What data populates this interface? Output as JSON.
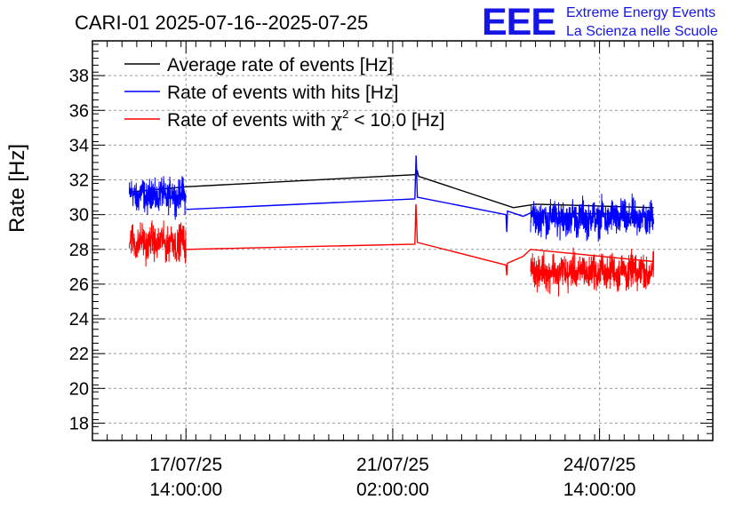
{
  "chart_data": {
    "type": "line",
    "title": "CARI-01 2025-07-16--2025-07-25",
    "ylabel": "Rate [Hz]",
    "xlabel": "",
    "x_unit": "hours since 2025-07-16 00:00",
    "xlim": [
      0,
      252
    ],
    "ylim": [
      17,
      40
    ],
    "yticks": [
      18,
      20,
      22,
      24,
      26,
      28,
      30,
      32,
      34,
      36,
      38
    ],
    "xticks": [
      {
        "x": 38,
        "date": "17/07/25",
        "time": "14:00:00"
      },
      {
        "x": 122,
        "date": "21/07/25",
        "time": "02:00:00"
      },
      {
        "x": 206,
        "date": "24/07/25",
        "time": "14:00:00"
      }
    ],
    "grid": true,
    "legend_position": "top-left",
    "series": [
      {
        "name": "Average rate of events [Hz]",
        "color": "#000000",
        "points": [
          [
            15,
            31.3
          ],
          [
            38,
            31.6
          ],
          [
            131,
            32.3
          ],
          [
            132,
            32.5
          ],
          [
            132.5,
            32.2
          ],
          [
            171,
            30.4
          ],
          [
            180,
            30.6
          ],
          [
            228,
            30.4
          ]
        ],
        "noise_segments": []
      },
      {
        "name": "Rate of events with hits [Hz]",
        "color": "#0000ff",
        "points": [
          [
            38,
            30.3
          ],
          [
            131,
            30.9
          ],
          [
            131.5,
            33.4
          ],
          [
            132,
            31.0
          ],
          [
            168,
            30.0
          ],
          [
            168.3,
            29.0
          ],
          [
            168.6,
            30.2
          ],
          [
            175,
            29.9
          ],
          [
            178,
            30.1
          ],
          [
            228,
            30.0
          ]
        ],
        "noise_segments": [
          {
            "x_start": 15,
            "x_end": 38,
            "center": 31.1,
            "spread": 1.3
          },
          {
            "x_start": 178,
            "x_end": 228,
            "center": 29.8,
            "spread": 1.4
          }
        ]
      },
      {
        "name": "Rate of events with χ² < 10.0 [Hz]",
        "color": "#ff0000",
        "points": [
          [
            38,
            28.0
          ],
          [
            131,
            28.3
          ],
          [
            131.4,
            30.6
          ],
          [
            132,
            28.4
          ],
          [
            168,
            27.1
          ],
          [
            168.3,
            26.5
          ],
          [
            168.6,
            27.2
          ],
          [
            175,
            27.6
          ],
          [
            178,
            28.0
          ],
          [
            228,
            27.3
          ]
        ],
        "noise_segments": [
          {
            "x_start": 15,
            "x_end": 38,
            "center": 28.4,
            "spread": 1.4
          },
          {
            "x_start": 178,
            "x_end": 228,
            "center": 26.7,
            "spread": 1.4
          }
        ]
      }
    ],
    "legend": [
      {
        "label": "Average rate of events [Hz]",
        "color": "#000000"
      },
      {
        "label": "Rate of events with hits [Hz]",
        "color": "#0000ff"
      },
      {
        "label_prefix": "Rate of events with ",
        "label_chi": "χ",
        "label_sup": "2",
        "label_suffix": " < 10.0 [Hz]",
        "color": "#ff0000"
      }
    ]
  },
  "logo": {
    "text": "EEE",
    "line1": "Extreme Energy Events",
    "line2": "La Scienza nelle Scuole",
    "color": "#1515e6"
  }
}
